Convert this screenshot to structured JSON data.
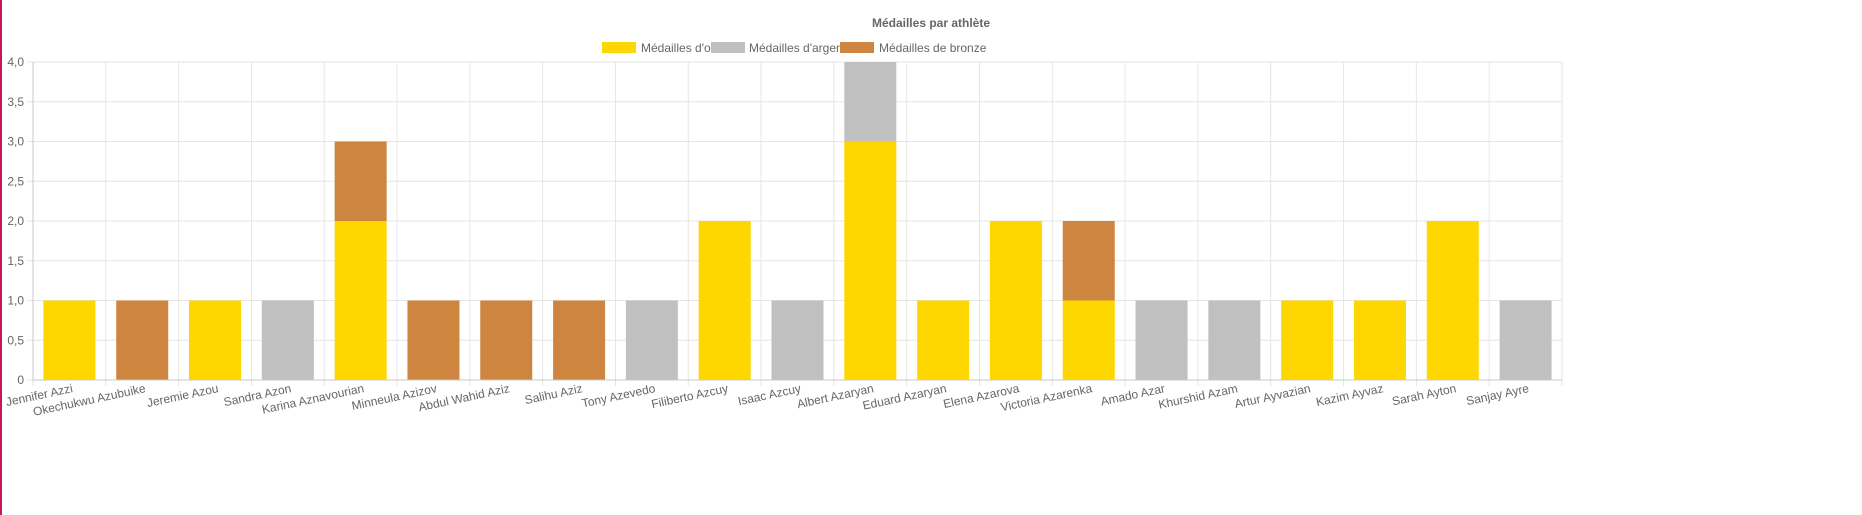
{
  "chart_data": {
    "type": "bar",
    "stacked": true,
    "title": "Médailles par athlète",
    "legend_position": "top",
    "grid": true,
    "ylim": [
      0,
      4
    ],
    "yticks": [
      "0",
      "0,5",
      "1,0",
      "1,5",
      "2,0",
      "2,5",
      "3,0",
      "3,5",
      "4,0"
    ],
    "categories": [
      "Jennifer Azzi",
      "Okechukwu Azubuike",
      "Jeremie Azou",
      "Sandra Azon",
      "Karina Aznavourian",
      "Minneula Azizov",
      "Abdul Wahid Aziz",
      "Salihu Aziz",
      "Tony Azevedo",
      "Filiberto Azcuy",
      "Isaac Azcuy",
      "Albert Azaryan",
      "Eduard Azaryan",
      "Elena Azarova",
      "Victoria Azarenka",
      "Amado Azar",
      "Khurshid Azam",
      "Artur Ayvazian",
      "Kazim Ayvaz",
      "Sarah Ayton",
      "Sanjay Ayre"
    ],
    "series": [
      {
        "name": "Médailles d'or",
        "color": "#FFD700",
        "values": [
          1,
          0,
          1,
          0,
          2,
          0,
          0,
          0,
          0,
          2,
          0,
          3,
          1,
          2,
          1,
          0,
          0,
          1,
          1,
          2,
          0
        ]
      },
      {
        "name": "Médailles d'argent",
        "color": "#C0C0C0",
        "values": [
          0,
          0,
          0,
          1,
          0,
          0,
          0,
          0,
          1,
          0,
          1,
          1,
          0,
          0,
          0,
          1,
          1,
          0,
          0,
          0,
          1
        ]
      },
      {
        "name": "Médailles de bronze",
        "color": "#CD853F",
        "values": [
          0,
          1,
          0,
          0,
          1,
          1,
          1,
          1,
          0,
          0,
          0,
          0,
          0,
          0,
          1,
          0,
          0,
          0,
          0,
          0,
          0
        ]
      }
    ]
  }
}
